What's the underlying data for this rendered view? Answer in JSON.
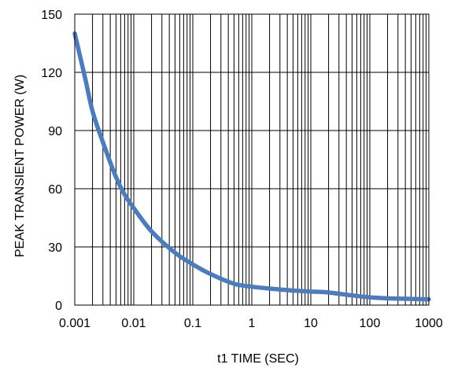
{
  "chart_data": {
    "type": "line",
    "title": "",
    "xlabel": "t1 TIME (SEC)",
    "ylabel": "PEAK TRANSIENT POWER (W)",
    "x_scale": "log",
    "xlim": [
      0.001,
      1000
    ],
    "ylim": [
      0,
      150
    ],
    "grid": true,
    "x_ticks": [
      "0.001",
      "0.01",
      "0.1",
      "1",
      "10",
      "100",
      "1000"
    ],
    "y_ticks": [
      "0",
      "30",
      "60",
      "90",
      "120",
      "150"
    ],
    "series": [
      {
        "color": "#4a7cc0",
        "x": [
          0.001,
          0.0015,
          0.002,
          0.003,
          0.005,
          0.007,
          0.01,
          0.02,
          0.05,
          0.1,
          0.2,
          0.5,
          1,
          2,
          5,
          10,
          20,
          50,
          100,
          200,
          500,
          1000
        ],
        "y": [
          140,
          117,
          100,
          84,
          66,
          57,
          50,
          38,
          27,
          21,
          16,
          11,
          9.5,
          8.5,
          7.5,
          7,
          6.5,
          5,
          4,
          3.5,
          3.2,
          3
        ]
      }
    ]
  }
}
